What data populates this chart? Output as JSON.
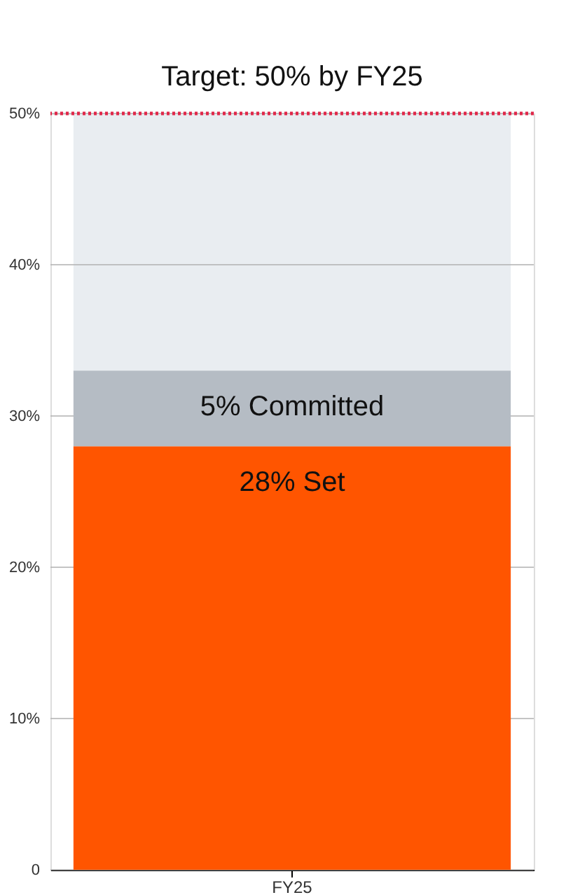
{
  "chart_data": {
    "type": "bar",
    "stacked": true,
    "categories": [
      "FY25"
    ],
    "series": [
      {
        "color": "#ff5500",
        "values": [
          28
        ],
        "value_labels": [
          "28% Set"
        ]
      },
      {
        "color": "#b5bcc4",
        "values": [
          5
        ],
        "value_labels": [
          "5% Committed"
        ]
      },
      {
        "color": "#e9edf1",
        "values": [
          17
        ]
      }
    ],
    "ylim": [
      0,
      50
    ],
    "yticks": [
      0,
      {
        "value": 10,
        "label": "10%"
      },
      {
        "value": 20,
        "label": "20%"
      },
      {
        "value": 30,
        "label": "30%"
      },
      {
        "value": 40,
        "label": "40%"
      },
      {
        "value": 50,
        "label": "50%"
      }
    ],
    "grid": "y",
    "ref_lines": [
      {
        "axis": "y",
        "value": 50,
        "label": "Target: 50% by FY25",
        "color": "#e0284a",
        "line_style": "dotted"
      }
    ]
  }
}
